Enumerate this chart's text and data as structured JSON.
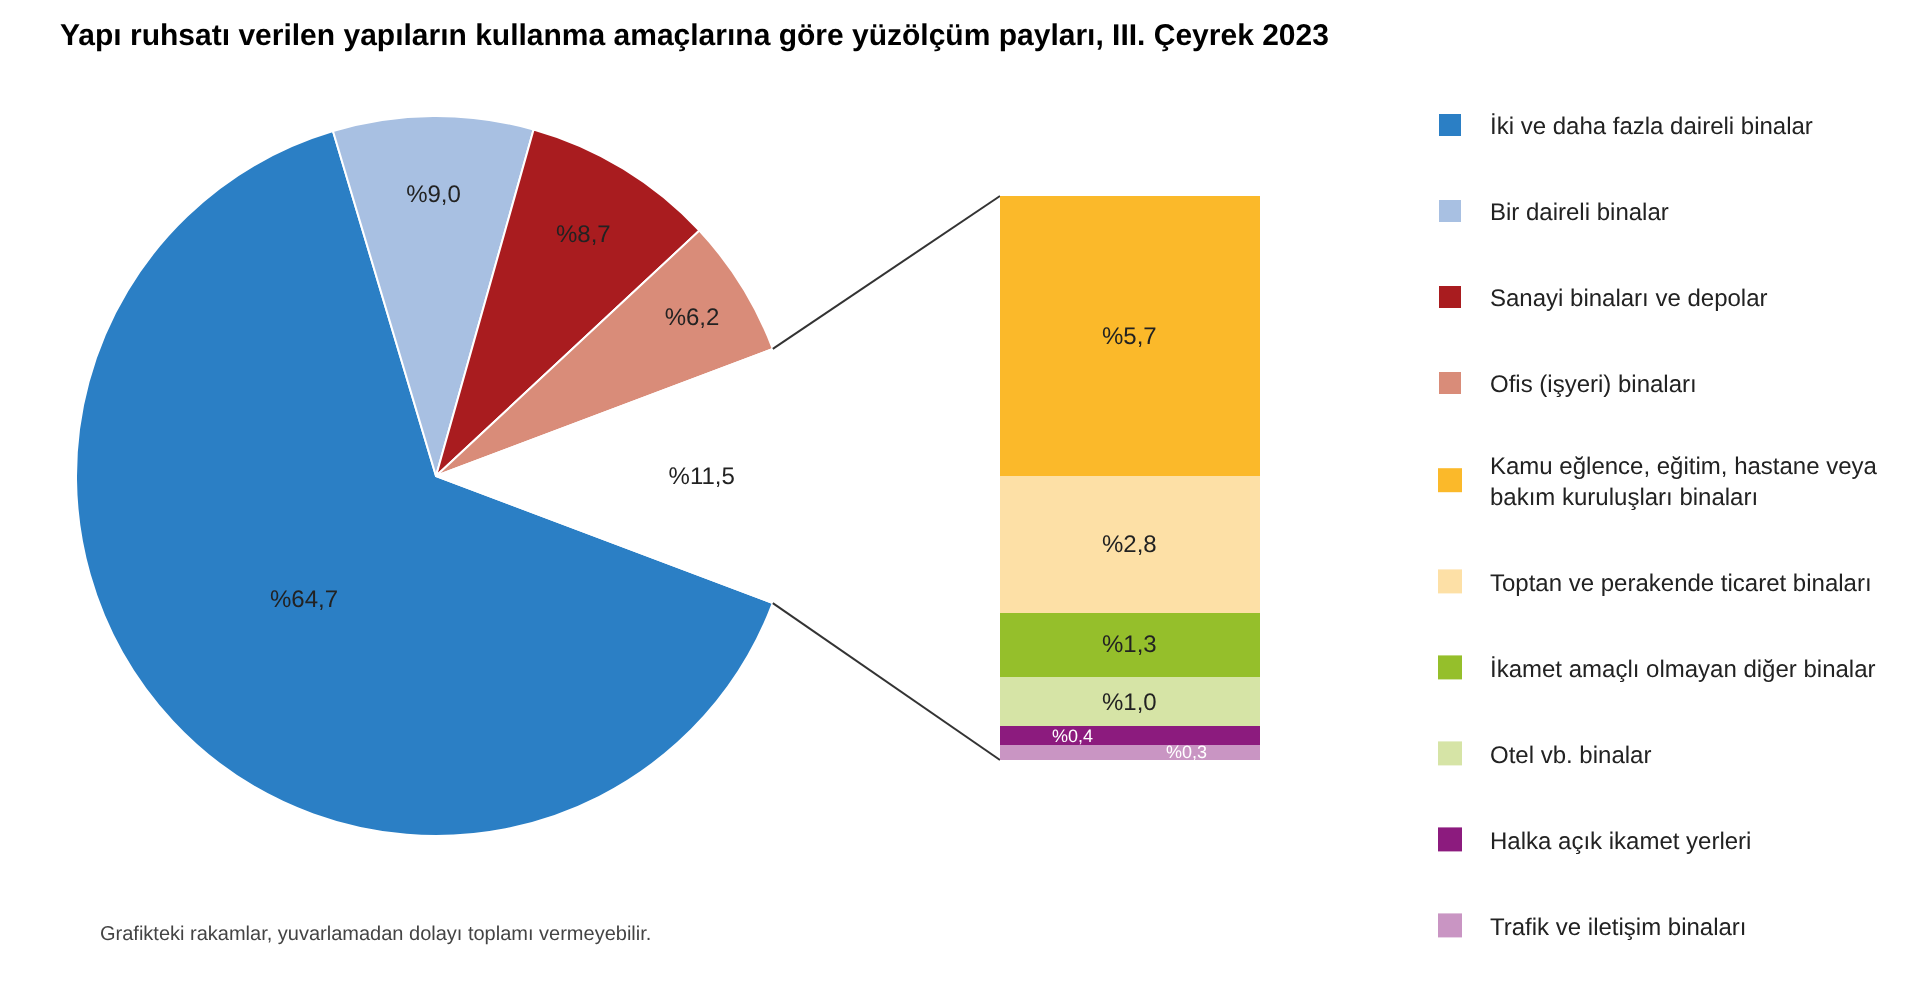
{
  "chart_data": [
    {
      "type": "pie",
      "title": "Yapı ruhsatı verilen yapıların kullanma amaçlarına göre yüzölçüm payları, III. Çeyrek 2023",
      "categories": [
        "İki ve daha fazla daireli binalar",
        "Bir daireli binalar",
        "Sanayi binaları ve depolar",
        "Ofis (işyeri) binaları",
        null
      ],
      "values": [
        64.7,
        9.0,
        8.7,
        6.2,
        11.5
      ],
      "colors": [
        "#2b7fc5",
        "#a8c0e2",
        "#a91c1f",
        "#d98c79",
        "#ffffff"
      ],
      "value_labels": [
        "%64,7",
        "%9,0",
        "%8,7",
        "%6,2",
        "%11,5"
      ],
      "legend": "right",
      "annotations": [
        "Grafikteki rakamlar, yuvarlamadan dolayı toplamı vermeyebilir."
      ]
    },
    {
      "type": "bar",
      "stacked": true,
      "categories": [
        null
      ],
      "legend": "right",
      "series": [
        {
          "name": "Trafik ve iletişim binaları",
          "color": "#c995c3",
          "values": [
            0.3
          ],
          "value_labels": [
            "%0,3"
          ]
        },
        {
          "name": "Halka açık ikamet yerleri",
          "color": "#8c1b7e",
          "values": [
            0.4
          ],
          "value_labels": [
            "%0,4"
          ]
        },
        {
          "name": "Otel vb. binalar",
          "color": "#d6e4a6",
          "values": [
            1.0
          ],
          "value_labels": [
            "%1,0"
          ]
        },
        {
          "name": "İkamet amaçlı olmayan diğer binalar",
          "color": "#95bf2b",
          "values": [
            1.3
          ],
          "value_labels": [
            "%1,3"
          ]
        },
        {
          "name": "Toptan ve perakende ticaret binaları",
          "color": "#fde0a6",
          "values": [
            2.8
          ],
          "value_labels": [
            "%2,8"
          ]
        },
        {
          "name": "Kamu eğlence, eğitim, hastane veya bakım kuruluşları binaları",
          "color": "#fbb92a",
          "values": [
            5.7
          ],
          "value_labels": [
            "%5,7"
          ]
        }
      ]
    }
  ]
}
